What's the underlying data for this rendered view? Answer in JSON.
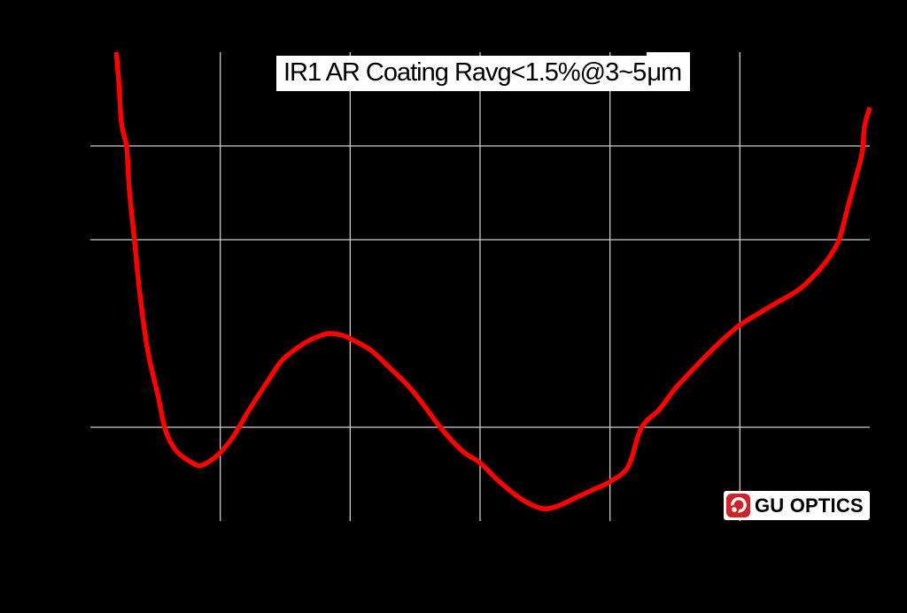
{
  "chart": {
    "title_main": "IR1 AR Coating Ravg<1.5%@3~5",
    "title_unit": "μm"
  },
  "logo": {
    "text": "GU OPTICS",
    "icon": "gu-optics-lens-icon"
  },
  "colors": {
    "background": "#000000",
    "gridline": "#CCCCCC",
    "curve": "#FF0000",
    "title_bg": "#FFFFFF",
    "title_text": "#000000",
    "logo_red": "#C9252C",
    "logo_text": "#000000"
  },
  "chart_data": {
    "type": "line",
    "title": "IR1 AR Coating Ravg<1.5%@3~5μm",
    "xlabel": "",
    "ylabel": "",
    "xlim": [
      2.5,
      5.5
    ],
    "ylim": [
      0,
      5
    ],
    "x_gridlines": [
      3.0,
      3.5,
      4.0,
      4.5,
      5.0
    ],
    "y_gridlines": [
      1,
      3,
      4
    ],
    "grid": true,
    "legend": false,
    "axis_tick_labels_visible": false,
    "series": [
      {
        "color": "#FF0000",
        "x_unit": "wavelength_um",
        "y_unit": "reflectance_percent",
        "points": [
          [
            2.6,
            5.0
          ],
          [
            2.61,
            4.66
          ],
          [
            2.62,
            4.24
          ],
          [
            2.64,
            3.98
          ],
          [
            2.65,
            3.53
          ],
          [
            2.67,
            2.99
          ],
          [
            2.69,
            2.44
          ],
          [
            2.72,
            1.83
          ],
          [
            2.76,
            1.34
          ],
          [
            2.79,
            0.96
          ],
          [
            2.83,
            0.75
          ],
          [
            2.88,
            0.64
          ],
          [
            2.92,
            0.59
          ],
          [
            2.96,
            0.64
          ],
          [
            3.0,
            0.73
          ],
          [
            3.05,
            0.9
          ],
          [
            3.11,
            1.18
          ],
          [
            3.18,
            1.48
          ],
          [
            3.24,
            1.72
          ],
          [
            3.32,
            1.89
          ],
          [
            3.38,
            1.97
          ],
          [
            3.42,
            2.0
          ],
          [
            3.47,
            1.98
          ],
          [
            3.51,
            1.93
          ],
          [
            3.58,
            1.82
          ],
          [
            3.65,
            1.64
          ],
          [
            3.74,
            1.39
          ],
          [
            3.85,
            0.99
          ],
          [
            3.93,
            0.75
          ],
          [
            4.0,
            0.62
          ],
          [
            4.07,
            0.43
          ],
          [
            4.14,
            0.27
          ],
          [
            4.2,
            0.17
          ],
          [
            4.25,
            0.13
          ],
          [
            4.3,
            0.16
          ],
          [
            4.37,
            0.25
          ],
          [
            4.44,
            0.34
          ],
          [
            4.5,
            0.42
          ],
          [
            4.57,
            0.58
          ],
          [
            4.62,
            0.99
          ],
          [
            4.69,
            1.19
          ],
          [
            4.75,
            1.41
          ],
          [
            4.81,
            1.59
          ],
          [
            4.88,
            1.79
          ],
          [
            4.94,
            1.95
          ],
          [
            5.0,
            2.09
          ],
          [
            5.07,
            2.21
          ],
          [
            5.13,
            2.31
          ],
          [
            5.2,
            2.42
          ],
          [
            5.25,
            2.52
          ],
          [
            5.33,
            2.76
          ],
          [
            5.38,
            2.99
          ],
          [
            5.41,
            3.29
          ],
          [
            5.44,
            3.6
          ],
          [
            5.47,
            3.92
          ],
          [
            5.48,
            4.21
          ],
          [
            5.5,
            4.41
          ]
        ]
      }
    ]
  }
}
